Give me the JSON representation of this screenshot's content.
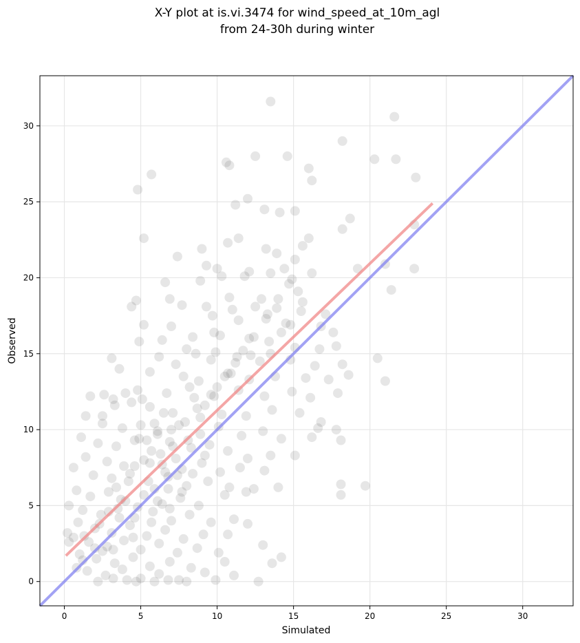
{
  "chart_data": {
    "type": "scatter",
    "title": "X-Y plot at is.vi.3474 for wind_speed_at_10m_agl",
    "subtitle": "from 24-30h during winter",
    "xlabel": "Simulated",
    "ylabel": "Observed",
    "xlim": [
      -1.6,
      33.3
    ],
    "ylim": [
      -1.6,
      33.3
    ],
    "x_ticks": [
      0,
      5,
      10,
      15,
      20,
      25,
      30
    ],
    "y_ticks": [
      0,
      5,
      10,
      15,
      20,
      25,
      30
    ],
    "x_tick_labels": [
      "0",
      "5",
      "10",
      "15",
      "20",
      "25",
      "30"
    ],
    "y_tick_labels": [
      "0",
      "5",
      "10",
      "15",
      "20",
      "25",
      "30"
    ],
    "grid": true,
    "legend": "none",
    "colors": {
      "points": "#555555",
      "regression_line": "#f08080",
      "identity_line": "#7b7bf0",
      "grid": "#e6e6e6"
    },
    "lines": [
      {
        "kind": "regression",
        "x": [
          0.1,
          24.1
        ],
        "y": [
          1.7,
          24.9
        ]
      },
      {
        "kind": "identity",
        "x": [
          -1.6,
          33.3
        ],
        "y": [
          -1.6,
          33.3
        ]
      }
    ],
    "points": [
      [
        13.5,
        31.6
      ],
      [
        21.6,
        30.6
      ],
      [
        18.2,
        29.0
      ],
      [
        12.5,
        28.0
      ],
      [
        14.6,
        28.0
      ],
      [
        10.6,
        27.6
      ],
      [
        10.8,
        27.4
      ],
      [
        16.0,
        27.2
      ],
      [
        20.3,
        27.8
      ],
      [
        21.7,
        27.8
      ],
      [
        5.7,
        26.8
      ],
      [
        16.2,
        26.4
      ],
      [
        23.0,
        26.6
      ],
      [
        4.8,
        25.8
      ],
      [
        11.2,
        24.8
      ],
      [
        12.0,
        25.2
      ],
      [
        13.1,
        24.5
      ],
      [
        14.1,
        24.3
      ],
      [
        15.1,
        24.4
      ],
      [
        18.7,
        23.9
      ],
      [
        22.9,
        23.5
      ],
      [
        18.2,
        23.2
      ],
      [
        5.2,
        22.6
      ],
      [
        11.4,
        22.6
      ],
      [
        10.7,
        22.3
      ],
      [
        13.2,
        21.9
      ],
      [
        9.0,
        21.9
      ],
      [
        13.9,
        21.6
      ],
      [
        15.6,
        22.1
      ],
      [
        16.0,
        22.6
      ],
      [
        7.4,
        21.4
      ],
      [
        15.1,
        21.2
      ],
      [
        12.1,
        20.4
      ],
      [
        9.3,
        20.8
      ],
      [
        10.0,
        20.6
      ],
      [
        13.5,
        20.3
      ],
      [
        19.2,
        20.6
      ],
      [
        21.0,
        20.9
      ],
      [
        22.9,
        20.6
      ],
      [
        6.6,
        19.7
      ],
      [
        8.9,
        19.8
      ],
      [
        10.3,
        20.1
      ],
      [
        11.8,
        20.1
      ],
      [
        14.7,
        19.6
      ],
      [
        15.3,
        19.1
      ],
      [
        16.2,
        20.3
      ],
      [
        21.4,
        19.2
      ],
      [
        4.7,
        18.5
      ],
      [
        6.9,
        18.6
      ],
      [
        9.3,
        18.1
      ],
      [
        10.8,
        18.7
      ],
      [
        12.5,
        18.1
      ],
      [
        13.9,
        18.0
      ],
      [
        15.5,
        17.8
      ],
      [
        17.1,
        17.6
      ],
      [
        4.4,
        18.1
      ],
      [
        7.7,
        18.2
      ],
      [
        9.7,
        17.5
      ],
      [
        11.4,
        17.2
      ],
      [
        13.3,
        17.6
      ],
      [
        14.5,
        17.0
      ],
      [
        16.8,
        16.8
      ],
      [
        7.0,
        16.8
      ],
      [
        5.2,
        16.9
      ],
      [
        8.4,
        16.1
      ],
      [
        10.2,
        16.2
      ],
      [
        12.1,
        16.0
      ],
      [
        14.2,
        16.4
      ],
      [
        17.6,
        16.4
      ],
      [
        6.4,
        15.9
      ],
      [
        4.9,
        15.8
      ],
      [
        8.0,
        15.3
      ],
      [
        9.9,
        15.1
      ],
      [
        11.7,
        15.2
      ],
      [
        13.5,
        15.0
      ],
      [
        15.1,
        15.4
      ],
      [
        16.7,
        15.3
      ],
      [
        17.8,
        15.5
      ],
      [
        3.1,
        14.7
      ],
      [
        6.2,
        14.8
      ],
      [
        7.3,
        14.3
      ],
      [
        9.6,
        14.6
      ],
      [
        11.2,
        14.4
      ],
      [
        12.8,
        14.5
      ],
      [
        14.8,
        14.6
      ],
      [
        16.4,
        14.2
      ],
      [
        18.2,
        14.3
      ],
      [
        3.6,
        14.0
      ],
      [
        5.6,
        13.8
      ],
      [
        7.8,
        13.5
      ],
      [
        8.8,
        13.2
      ],
      [
        10.7,
        13.7
      ],
      [
        12.1,
        13.3
      ],
      [
        13.8,
        13.5
      ],
      [
        15.8,
        13.4
      ],
      [
        17.3,
        13.3
      ],
      [
        18.6,
        13.6
      ],
      [
        4.8,
        12.6
      ],
      [
        6.7,
        12.4
      ],
      [
        8.2,
        12.8
      ],
      [
        9.6,
        12.3
      ],
      [
        11.4,
        12.6
      ],
      [
        13.1,
        12.2
      ],
      [
        14.9,
        12.5
      ],
      [
        16.1,
        12.1
      ],
      [
        17.9,
        12.4
      ],
      [
        21.0,
        13.2
      ],
      [
        20.5,
        14.7
      ],
      [
        1.7,
        12.2
      ],
      [
        2.6,
        12.3
      ],
      [
        3.3,
        11.6
      ],
      [
        4.4,
        11.8
      ],
      [
        5.6,
        11.5
      ],
      [
        7.1,
        11.1
      ],
      [
        8.7,
        11.4
      ],
      [
        10.3,
        11.0
      ],
      [
        11.9,
        10.9
      ],
      [
        13.6,
        11.3
      ],
      [
        15.4,
        11.1
      ],
      [
        16.8,
        10.5
      ],
      [
        1.4,
        10.9
      ],
      [
        2.5,
        10.4
      ],
      [
        3.8,
        10.1
      ],
      [
        5.0,
        10.3
      ],
      [
        6.1,
        9.9
      ],
      [
        7.5,
        10.3
      ],
      [
        8.9,
        9.7
      ],
      [
        10.1,
        10.2
      ],
      [
        11.6,
        9.6
      ],
      [
        13.0,
        9.9
      ],
      [
        14.2,
        9.4
      ],
      [
        16.6,
        10.1
      ],
      [
        18.1,
        9.3
      ],
      [
        17.8,
        10.0
      ],
      [
        1.1,
        9.5
      ],
      [
        2.2,
        9.1
      ],
      [
        3.4,
        8.9
      ],
      [
        4.6,
        9.3
      ],
      [
        5.7,
        8.6
      ],
      [
        6.9,
        9.2
      ],
      [
        8.3,
        8.8
      ],
      [
        9.5,
        9.0
      ],
      [
        10.7,
        8.6
      ],
      [
        12.0,
        8.1
      ],
      [
        13.5,
        8.3
      ],
      [
        15.1,
        8.3
      ],
      [
        16.2,
        9.5
      ],
      [
        1.4,
        8.2
      ],
      [
        2.8,
        7.9
      ],
      [
        3.9,
        7.6
      ],
      [
        5.2,
        8.0
      ],
      [
        6.4,
        7.7
      ],
      [
        7.7,
        7.4
      ],
      [
        9.0,
        7.8
      ],
      [
        10.2,
        7.2
      ],
      [
        11.5,
        7.5
      ],
      [
        13.1,
        7.3
      ],
      [
        0.6,
        7.5
      ],
      [
        1.9,
        7.0
      ],
      [
        3.1,
        6.8
      ],
      [
        4.3,
        7.1
      ],
      [
        5.5,
        6.6
      ],
      [
        6.8,
        6.9
      ],
      [
        8.0,
        6.3
      ],
      [
        9.4,
        6.6
      ],
      [
        10.8,
        6.2
      ],
      [
        12.4,
        6.1
      ],
      [
        14.0,
        6.2
      ],
      [
        18.1,
        6.4
      ],
      [
        19.7,
        6.3
      ],
      [
        0.8,
        6.0
      ],
      [
        1.7,
        5.6
      ],
      [
        2.9,
        5.9
      ],
      [
        4.0,
        5.3
      ],
      [
        5.2,
        5.7
      ],
      [
        6.4,
        5.1
      ],
      [
        7.6,
        5.5
      ],
      [
        8.8,
        5.0
      ],
      [
        10.5,
        5.7
      ],
      [
        11.9,
        5.9
      ],
      [
        18.1,
        5.7
      ],
      [
        0.3,
        5.0
      ],
      [
        1.2,
        4.7
      ],
      [
        2.4,
        4.4
      ],
      [
        3.5,
        4.8
      ],
      [
        4.6,
        4.2
      ],
      [
        5.8,
        4.6
      ],
      [
        7.0,
        4.0
      ],
      [
        8.2,
        4.4
      ],
      [
        9.6,
        3.9
      ],
      [
        11.1,
        4.1
      ],
      [
        12.0,
        3.8
      ],
      [
        0.9,
        3.9
      ],
      [
        2.0,
        3.5
      ],
      [
        3.1,
        3.2
      ],
      [
        4.3,
        3.7
      ],
      [
        5.4,
        3.0
      ],
      [
        6.6,
        3.4
      ],
      [
        7.8,
        2.8
      ],
      [
        9.1,
        3.1
      ],
      [
        10.7,
        3.1
      ],
      [
        0.6,
        2.9
      ],
      [
        1.6,
        2.6
      ],
      [
        2.8,
        2.3
      ],
      [
        3.9,
        2.7
      ],
      [
        5.0,
        2.1
      ],
      [
        6.2,
        2.5
      ],
      [
        7.4,
        1.9
      ],
      [
        8.7,
        2.2
      ],
      [
        10.1,
        1.9
      ],
      [
        13.0,
        2.4
      ],
      [
        1.0,
        1.8
      ],
      [
        2.1,
        1.5
      ],
      [
        3.3,
        1.2
      ],
      [
        4.5,
        1.6
      ],
      [
        5.6,
        1.0
      ],
      [
        6.9,
        1.3
      ],
      [
        8.3,
        0.9
      ],
      [
        10.5,
        1.3
      ],
      [
        14.2,
        1.6
      ],
      [
        13.6,
        1.2
      ],
      [
        1.5,
        0.7
      ],
      [
        2.7,
        0.4
      ],
      [
        3.8,
        0.8
      ],
      [
        5.0,
        0.2
      ],
      [
        6.2,
        0.5
      ],
      [
        7.5,
        0.1
      ],
      [
        9.2,
        0.6
      ],
      [
        11.1,
        0.4
      ],
      [
        2.2,
        0.0
      ],
      [
        3.2,
        0.2
      ],
      [
        4.1,
        0.1
      ],
      [
        4.7,
        0.0
      ],
      [
        5.9,
        0.0
      ],
      [
        6.8,
        0.1
      ],
      [
        8.0,
        0.0
      ],
      [
        9.9,
        0.1
      ],
      [
        12.7,
        0.0
      ],
      [
        0.3,
        2.6
      ],
      [
        0.2,
        3.2
      ],
      [
        1.3,
        3.0
      ],
      [
        2.5,
        2.0
      ],
      [
        3.6,
        4.2
      ],
      [
        4.8,
        4.9
      ],
      [
        5.9,
        6.1
      ],
      [
        6.6,
        7.2
      ],
      [
        7.3,
        8.1
      ],
      [
        8.1,
        9.3
      ],
      [
        8.9,
        10.8
      ],
      [
        9.8,
        12.2
      ],
      [
        10.5,
        13.5
      ],
      [
        11.3,
        14.8
      ],
      [
        12.4,
        16.1
      ],
      [
        13.2,
        17.3
      ],
      [
        14.0,
        18.6
      ],
      [
        14.9,
        19.9
      ],
      [
        6.1,
        5.3
      ],
      [
        6.8,
        6.1
      ],
      [
        7.4,
        7.0
      ],
      [
        5.4,
        9.3
      ],
      [
        6.1,
        9.7
      ],
      [
        7.0,
        10.0
      ],
      [
        7.9,
        10.5
      ],
      [
        5.6,
        7.8
      ],
      [
        4.2,
        6.6
      ],
      [
        3.7,
        5.4
      ],
      [
        2.9,
        4.6
      ],
      [
        2.3,
        3.8
      ],
      [
        3.4,
        6.2
      ],
      [
        4.6,
        7.6
      ],
      [
        6.3,
        8.4
      ],
      [
        7.1,
        8.9
      ],
      [
        8.4,
        7.1
      ],
      [
        9.2,
        8.3
      ],
      [
        7.7,
        5.9
      ],
      [
        6.9,
        4.8
      ],
      [
        5.7,
        3.9
      ],
      [
        4.5,
        2.9
      ],
      [
        3.2,
        2.1
      ],
      [
        2.0,
        2.2
      ],
      [
        1.2,
        1.4
      ],
      [
        0.8,
        0.9
      ],
      [
        5.1,
        12.0
      ],
      [
        4.0,
        12.4
      ],
      [
        3.2,
        12.0
      ],
      [
        2.5,
        10.9
      ],
      [
        8.6,
        15.0
      ],
      [
        9.8,
        16.4
      ],
      [
        11.0,
        17.9
      ],
      [
        12.9,
        18.6
      ],
      [
        14.4,
        20.6
      ],
      [
        15.6,
        18.4
      ],
      [
        14.8,
        16.9
      ],
      [
        13.4,
        15.8
      ],
      [
        12.2,
        14.9
      ],
      [
        10.9,
        13.7
      ],
      [
        10.0,
        12.8
      ],
      [
        9.2,
        11.6
      ],
      [
        8.5,
        12.1
      ],
      [
        6.5,
        11.1
      ],
      [
        5.9,
        10.4
      ],
      [
        4.9,
        9.4
      ]
    ]
  }
}
